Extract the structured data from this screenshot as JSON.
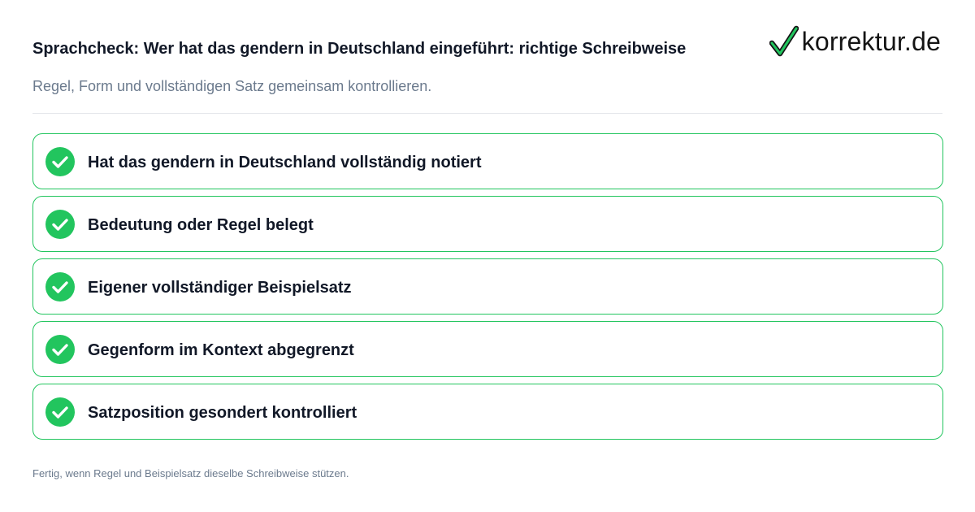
{
  "header": {
    "title": "Sprachcheck: Wer hat das gendern in Deutschland eingeführt: richtige Schreibweise",
    "subtitle": "Regel, Form und vollständigen Satz gemeinsam kontrollieren."
  },
  "logo": {
    "text": "korrektur.de",
    "icon": "checkmark-icon",
    "accent_color": "#22c55e"
  },
  "checklist": {
    "check_color": "#22c55e",
    "items": [
      {
        "label": "Hat das gendern in Deutschland vollständig notiert",
        "checked": true
      },
      {
        "label": "Bedeutung oder Regel belegt",
        "checked": true
      },
      {
        "label": "Eigener vollständiger Beispielsatz",
        "checked": true
      },
      {
        "label": "Gegenform im Kontext abgegrenzt",
        "checked": true
      },
      {
        "label": "Satzposition gesondert kontrolliert",
        "checked": true
      }
    ]
  },
  "footer": {
    "note": "Fertig, wenn Regel und Beispielsatz dieselbe Schreibweise stützen."
  }
}
